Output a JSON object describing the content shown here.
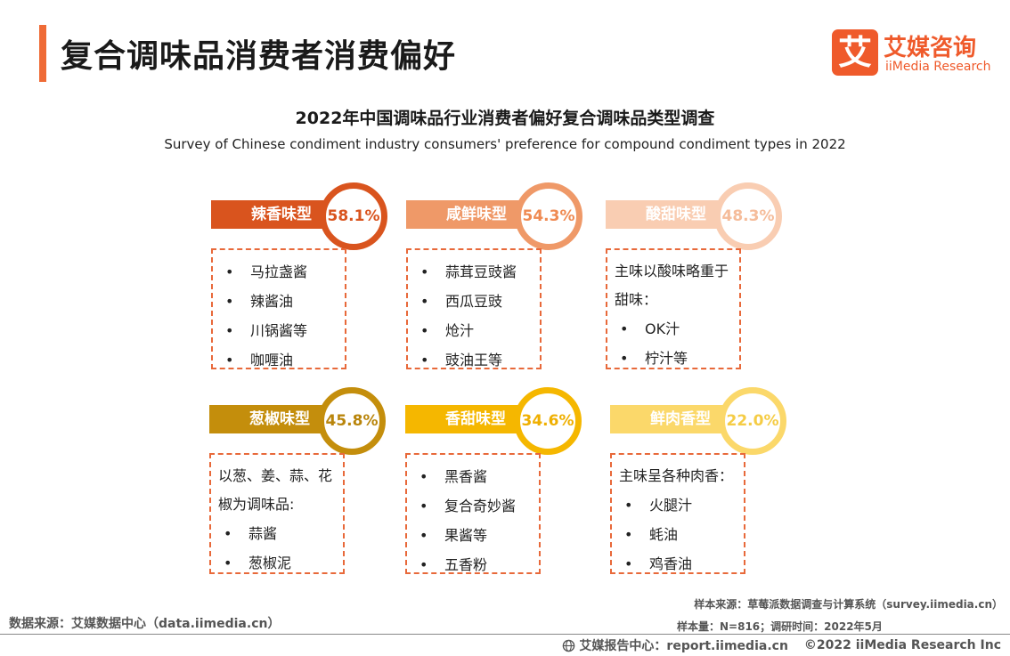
{
  "header": {
    "title": "复合调味品消费者消费偏好"
  },
  "logo": {
    "mark": "艾",
    "name_cn": "艾媒咨询",
    "name_en": "iiMedia Research"
  },
  "chart_data": {
    "type": "table",
    "title": "2022年中国调味品行业消费者偏好复合调味品类型调查",
    "subtitle": "Survey of Chinese condiment industry consumers' preference for compound condiment types in 2022",
    "unit": "%",
    "categories": [
      "辣香味型",
      "咸鲜味型",
      "酸甜味型",
      "葱椒味型",
      "香甜味型",
      "鲜肉香型"
    ],
    "values": [
      58.1,
      54.3,
      48.3,
      45.8,
      34.6,
      22.0
    ],
    "items": [
      {
        "name": "辣香味型",
        "value": 58.1,
        "value_label": "58.1%",
        "color": "#d9541e",
        "text_color": "#d9541e",
        "intro": "",
        "examples": [
          "马拉盏酱",
          "辣酱油",
          "川锅酱等",
          "咖喱油"
        ]
      },
      {
        "name": "咸鲜味型",
        "value": 54.3,
        "value_label": "54.3%",
        "color": "#ef9968",
        "text_color": "#ef8a52",
        "intro": "",
        "examples": [
          "蒜茸豆豉酱",
          "西瓜豆豉",
          "炝汁",
          "豉油王等"
        ]
      },
      {
        "name": "酸甜味型",
        "value": 48.3,
        "value_label": "48.3%",
        "color": "#f9cdb2",
        "text_color": "#f5bc9a",
        "intro": "主味以酸味略重于甜味：",
        "examples": [
          "OK汁",
          "柠汁等"
        ]
      },
      {
        "name": "葱椒味型",
        "value": 45.8,
        "value_label": "45.8%",
        "color": "#c48e0c",
        "text_color": "#b9850b",
        "intro": "以葱、姜、蒜、花椒为调味品:",
        "examples": [
          "蒜酱",
          "葱椒泥"
        ]
      },
      {
        "name": "香甜味型",
        "value": 34.6,
        "value_label": "34.6%",
        "color": "#f5b700",
        "text_color": "#efaf00",
        "intro": "",
        "examples": [
          "黑香酱",
          "复合奇妙酱",
          "果酱等",
          "五香粉"
        ]
      },
      {
        "name": "鲜肉香型",
        "value": 22.0,
        "value_label": "22.0%",
        "color": "#fbd86a",
        "text_color": "#f5cc45",
        "intro": "主味呈各种肉香：",
        "examples": [
          "火腿汁",
          "蚝油",
          "鸡香油"
        ]
      }
    ]
  },
  "sources": {
    "data_source": "数据来源：艾媒数据中心（data.iimedia.cn）",
    "sample_source": "样本来源：草莓派数据调查与计算系统（survey.iimedia.cn）",
    "sample_info": "样本量：N=816；调研时间：2022年5月"
  },
  "footer": {
    "icon": "globe-icon",
    "report_center": "艾媒报告中心：report.iimedia.cn",
    "copyright": "©2022  iiMedia Research  Inc"
  }
}
